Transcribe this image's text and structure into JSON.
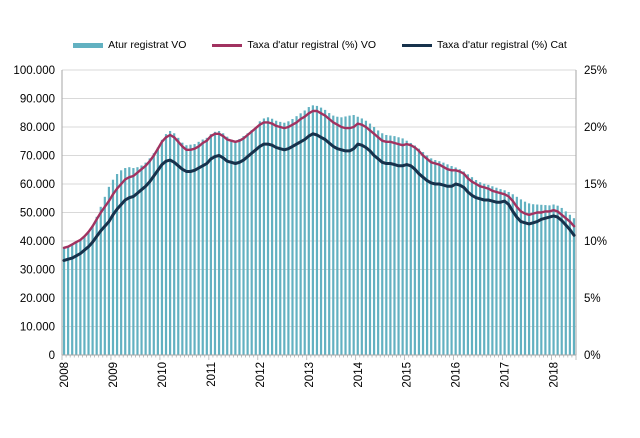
{
  "chart_data": {
    "type": "bar+line",
    "title": "",
    "x_start": "2008-01",
    "x_end": "2018-06",
    "x_year_labels": [
      "2008",
      "2009",
      "2010",
      "2011",
      "2012",
      "2013",
      "2014",
      "2015",
      "2016",
      "2017",
      "2018"
    ],
    "left_axis": {
      "min": 0,
      "max": 100000,
      "step": 10000,
      "tick_labels": [
        "0",
        "10.000",
        "20.000",
        "30.000",
        "40.000",
        "50.000",
        "60.000",
        "70.000",
        "80.000",
        "90.000",
        "100.000"
      ]
    },
    "right_axis": {
      "min": 0,
      "max": 25,
      "step": 5,
      "tick_labels": [
        "0%",
        "5%",
        "10%",
        "15%",
        "20%",
        "25%"
      ]
    },
    "grid": true,
    "legend_position": "top",
    "bar_series": {
      "name": "Atur registrat VO",
      "axis": "left",
      "color": "#62b1c1",
      "values": [
        37500,
        38200,
        38800,
        39600,
        40500,
        41800,
        43500,
        45500,
        48500,
        52000,
        55500,
        59000,
        61500,
        63500,
        64800,
        65600,
        65900,
        65600,
        65900,
        66500,
        67500,
        69000,
        70800,
        72800,
        75500,
        77500,
        78600,
        77800,
        76200,
        74500,
        73600,
        73800,
        74000,
        74800,
        75600,
        76200,
        77500,
        78300,
        78600,
        77800,
        76600,
        75600,
        75200,
        75800,
        76800,
        77800,
        78900,
        80000,
        82000,
        83000,
        83400,
        82900,
        82200,
        81800,
        81500,
        82000,
        82800,
        83800,
        84800,
        85800,
        87000,
        87600,
        87400,
        86800,
        86000,
        84900,
        84000,
        83600,
        83400,
        83700,
        84000,
        84200,
        83600,
        83000,
        82200,
        81200,
        80000,
        78800,
        77800,
        77200,
        77000,
        76800,
        76400,
        76000,
        75200,
        74400,
        73500,
        72400,
        71200,
        70000,
        69000,
        68400,
        68000,
        67500,
        66900,
        66300,
        65800,
        65200,
        64400,
        63400,
        62400,
        61400,
        60600,
        60100,
        59700,
        59200,
        58700,
        58200,
        57800,
        57200,
        56400,
        55500,
        54600,
        53800,
        53200,
        52900,
        52800,
        52700,
        52600,
        52500,
        52800,
        52400,
        51600,
        50400,
        49200,
        48000
      ]
    },
    "line_series": [
      {
        "name": "Taxa d'atur registral (%) VO",
        "axis": "right",
        "color": "#a13260",
        "values": [
          9.4,
          9.5,
          9.7,
          9.9,
          10.1,
          10.4,
          10.8,
          11.3,
          11.9,
          12.5,
          13.0,
          13.5,
          14.1,
          14.6,
          15.0,
          15.4,
          15.6,
          15.7,
          16.0,
          16.3,
          16.6,
          17.0,
          17.5,
          18.1,
          18.7,
          19.1,
          19.3,
          19.1,
          18.7,
          18.3,
          18.0,
          18.0,
          18.1,
          18.3,
          18.6,
          18.8,
          19.2,
          19.4,
          19.4,
          19.2,
          18.9,
          18.8,
          18.7,
          18.8,
          19.0,
          19.3,
          19.6,
          19.9,
          20.2,
          20.4,
          20.4,
          20.3,
          20.1,
          20.0,
          19.9,
          20.0,
          20.2,
          20.4,
          20.7,
          20.9,
          21.2,
          21.4,
          21.4,
          21.2,
          21.0,
          20.7,
          20.4,
          20.2,
          20.0,
          19.9,
          19.9,
          20.0,
          20.3,
          20.2,
          20.0,
          19.7,
          19.4,
          19.1,
          18.8,
          18.7,
          18.7,
          18.6,
          18.5,
          18.4,
          18.5,
          18.4,
          18.2,
          17.9,
          17.5,
          17.2,
          16.9,
          16.8,
          16.7,
          16.5,
          16.3,
          16.2,
          16.2,
          16.1,
          15.9,
          15.5,
          15.2,
          15.0,
          14.8,
          14.7,
          14.6,
          14.4,
          14.3,
          14.2,
          14.1,
          13.9,
          13.5,
          13.0,
          12.6,
          12.4,
          12.3,
          12.4,
          12.5,
          12.5,
          12.6,
          12.6,
          12.7,
          12.6,
          12.3,
          12.0,
          11.7,
          11.3
        ]
      },
      {
        "name": "Taxa d'atur registral (%) Cat",
        "axis": "right",
        "color": "#17324c",
        "values": [
          8.3,
          8.4,
          8.5,
          8.7,
          8.9,
          9.2,
          9.5,
          9.9,
          10.4,
          10.9,
          11.3,
          11.7,
          12.3,
          12.8,
          13.2,
          13.6,
          13.8,
          13.9,
          14.2,
          14.5,
          14.8,
          15.2,
          15.7,
          16.2,
          16.7,
          17.0,
          17.1,
          16.9,
          16.6,
          16.3,
          16.1,
          16.1,
          16.2,
          16.4,
          16.6,
          16.8,
          17.2,
          17.4,
          17.5,
          17.3,
          17.0,
          16.9,
          16.8,
          16.9,
          17.1,
          17.4,
          17.7,
          18.0,
          18.3,
          18.5,
          18.5,
          18.4,
          18.2,
          18.1,
          18.0,
          18.1,
          18.3,
          18.5,
          18.7,
          18.9,
          19.2,
          19.4,
          19.3,
          19.1,
          18.9,
          18.6,
          18.3,
          18.1,
          18.0,
          17.9,
          17.9,
          18.1,
          18.5,
          18.4,
          18.2,
          17.9,
          17.5,
          17.2,
          16.9,
          16.8,
          16.8,
          16.7,
          16.6,
          16.6,
          16.7,
          16.6,
          16.3,
          15.9,
          15.6,
          15.3,
          15.1,
          15.0,
          15.0,
          14.9,
          14.8,
          14.8,
          15.0,
          14.9,
          14.7,
          14.3,
          14.0,
          13.8,
          13.7,
          13.6,
          13.6,
          13.5,
          13.4,
          13.4,
          13.5,
          13.2,
          12.6,
          12.1,
          11.7,
          11.6,
          11.5,
          11.6,
          11.7,
          11.9,
          12.0,
          12.1,
          12.2,
          12.1,
          11.8,
          11.4,
          11.0,
          10.5
        ]
      }
    ],
    "colors": {
      "grid": "#d9d9d9",
      "axis": "#a6a6a6",
      "text": "#000000"
    }
  }
}
